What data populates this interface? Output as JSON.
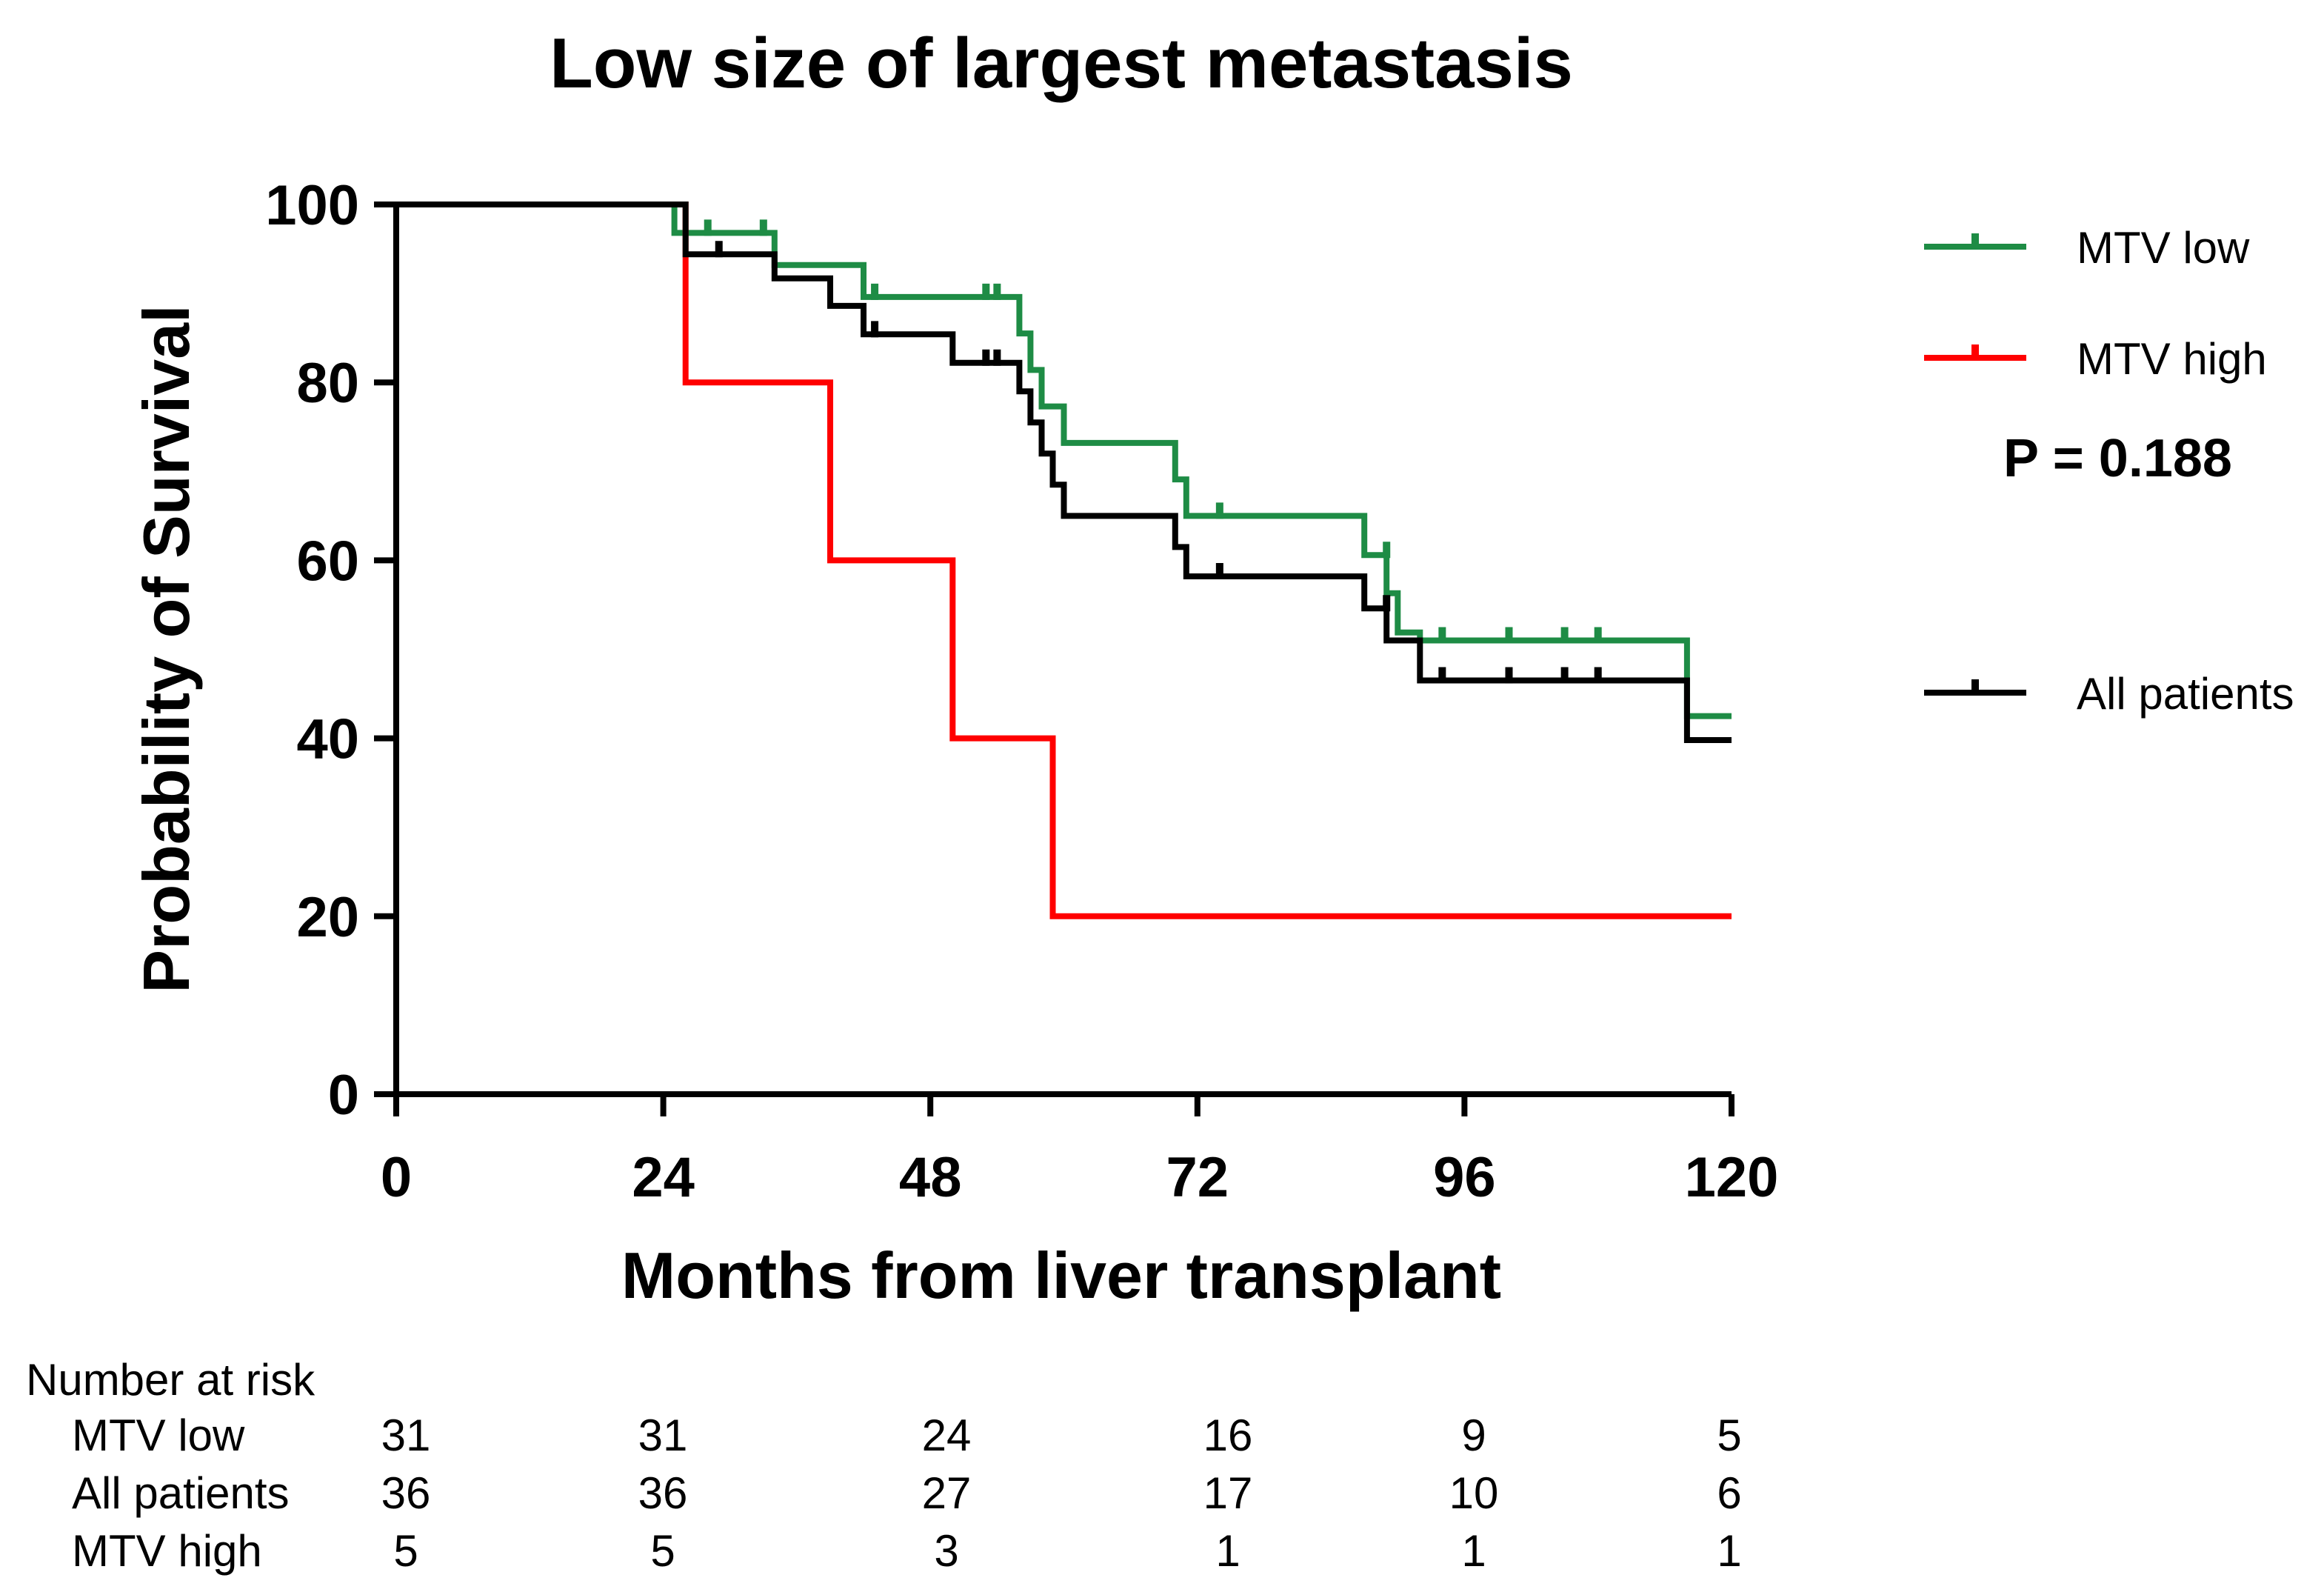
{
  "chart_data": {
    "type": "line",
    "subtype": "kaplan-meier step",
    "title": "Low size of largest metastasis",
    "xlabel": "Months from liver transplant",
    "ylabel": "Probability of Survival",
    "xlim": [
      0,
      120
    ],
    "ylim": [
      0,
      100
    ],
    "xticks": [
      0,
      24,
      48,
      72,
      96,
      120
    ],
    "yticks": [
      0,
      20,
      40,
      60,
      80,
      100
    ],
    "grid": false,
    "legend_position": "right",
    "p_value_label": "P = 0.188",
    "series": [
      {
        "name": "MTV low",
        "color": "#1e8c45",
        "steps": [
          [
            0,
            100
          ],
          [
            25,
            100
          ],
          [
            25,
            96.8
          ],
          [
            34,
            96.8
          ],
          [
            34,
            93.2
          ],
          [
            42,
            93.2
          ],
          [
            42,
            89.6
          ],
          [
            56,
            89.6
          ],
          [
            56,
            85.5
          ],
          [
            57,
            85.5
          ],
          [
            57,
            81.4
          ],
          [
            58,
            81.4
          ],
          [
            58,
            77.3
          ],
          [
            60,
            77.3
          ],
          [
            60,
            73.2
          ],
          [
            70,
            73.2
          ],
          [
            70,
            69.1
          ],
          [
            71,
            69.1
          ],
          [
            71,
            65
          ],
          [
            87,
            65
          ],
          [
            87,
            60.6
          ],
          [
            89,
            60.6
          ],
          [
            89,
            56.3
          ],
          [
            90,
            56.3
          ],
          [
            90,
            51.9
          ],
          [
            92,
            51.9
          ],
          [
            92,
            51
          ],
          [
            116,
            51
          ],
          [
            116,
            42.5
          ],
          [
            120,
            42.5
          ]
        ],
        "censored": [
          [
            28,
            96.8
          ],
          [
            33,
            96.8
          ],
          [
            43,
            89.6
          ],
          [
            53,
            89.6
          ],
          [
            54,
            89.6
          ],
          [
            74,
            65
          ],
          [
            89,
            60.6
          ],
          [
            94,
            51
          ],
          [
            100,
            51
          ],
          [
            105,
            51
          ],
          [
            108,
            51
          ]
        ]
      },
      {
        "name": "MTV high",
        "color": "#ff0000",
        "steps": [
          [
            0,
            100
          ],
          [
            26,
            100
          ],
          [
            26,
            80
          ],
          [
            39,
            80
          ],
          [
            39,
            60
          ],
          [
            50,
            60
          ],
          [
            50,
            40
          ],
          [
            59,
            40
          ],
          [
            59,
            20
          ],
          [
            120,
            20
          ]
        ],
        "censored": []
      },
      {
        "name": "All patients",
        "color": "#000000",
        "steps": [
          [
            0,
            100
          ],
          [
            26,
            100
          ],
          [
            26,
            94.4
          ],
          [
            34,
            94.4
          ],
          [
            34,
            91.7
          ],
          [
            39,
            91.7
          ],
          [
            39,
            88.6
          ],
          [
            42,
            88.6
          ],
          [
            42,
            85.4
          ],
          [
            50,
            85.4
          ],
          [
            50,
            82.2
          ],
          [
            56,
            82.2
          ],
          [
            56,
            79
          ],
          [
            57,
            79
          ],
          [
            57,
            75.5
          ],
          [
            58,
            75.5
          ],
          [
            58,
            72
          ],
          [
            59,
            72
          ],
          [
            59,
            68.5
          ],
          [
            60,
            68.5
          ],
          [
            60,
            65
          ],
          [
            70,
            65
          ],
          [
            70,
            61.5
          ],
          [
            71,
            61.5
          ],
          [
            71,
            58.2
          ],
          [
            87,
            58.2
          ],
          [
            87,
            54.6
          ],
          [
            89,
            54.6
          ],
          [
            89,
            51
          ],
          [
            92,
            51
          ],
          [
            92,
            46.5
          ],
          [
            116,
            46.5
          ],
          [
            116,
            39.8
          ],
          [
            120,
            39.8
          ]
        ],
        "censored": [
          [
            29,
            94.4
          ],
          [
            43,
            85.4
          ],
          [
            53,
            82.2
          ],
          [
            54,
            82.2
          ],
          [
            74,
            58.2
          ],
          [
            89,
            54.6
          ],
          [
            94,
            46.5
          ],
          [
            100,
            46.5
          ],
          [
            105,
            46.5
          ],
          [
            108,
            46.5
          ]
        ]
      }
    ],
    "risk_table": {
      "header": "Number at risk",
      "rows": [
        {
          "label": "MTV low",
          "values": [
            "31",
            "31",
            "24",
            "16",
            "9",
            "5"
          ]
        },
        {
          "label": "All patients",
          "values": [
            "36",
            "36",
            "27",
            "17",
            "10",
            "6"
          ]
        },
        {
          "label": "MTV high",
          "values": [
            "5",
            "5",
            "3",
            "1",
            "1",
            "1"
          ]
        }
      ]
    }
  }
}
